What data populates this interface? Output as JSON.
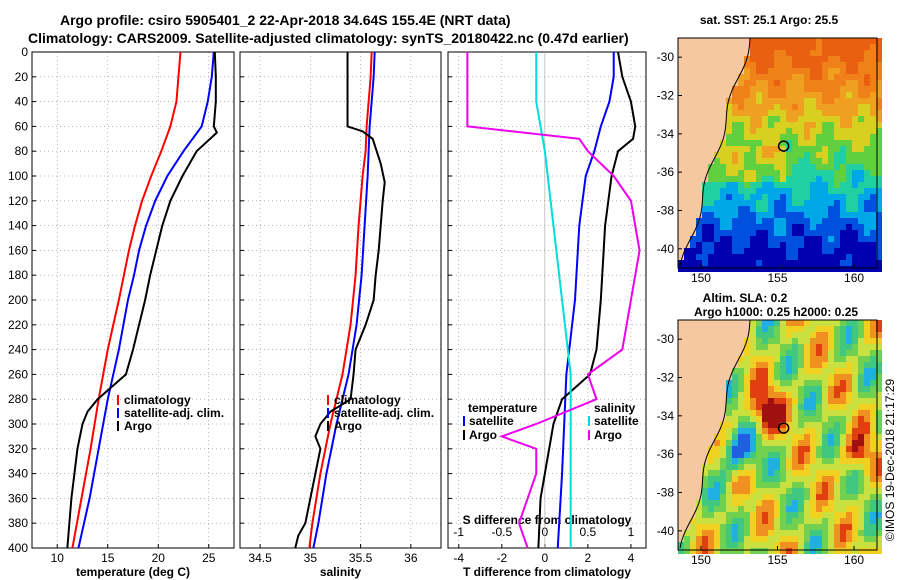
{
  "titles": {
    "line1": "Argo profile: csiro 5905401_2 22-Apr-2018 34.64S 155.4E (NRT data)",
    "line2": "Climatology: CARS2009. Satellite-adjusted climatology: synTS_20180422.nc (0.47d earlier)"
  },
  "colors": {
    "climatology": "#ff0000",
    "satellite": "#0000ff",
    "argo": "#000000",
    "sat_salinity": "#00dddd",
    "clim_salinity": "#ee00ee"
  },
  "chart_data": [
    {
      "type": "line",
      "title": "",
      "xlabel": "temperature (deg C)",
      "ylabel": "",
      "xlim": [
        7.5,
        27.5
      ],
      "ylim": [
        400,
        0
      ],
      "xticks": [
        "10",
        "15",
        "20",
        "25"
      ],
      "yticks": [
        "0",
        "20",
        "40",
        "60",
        "80",
        "100",
        "120",
        "140",
        "160",
        "180",
        "200",
        "220",
        "240",
        "260",
        "280",
        "300",
        "320",
        "340",
        "360",
        "380",
        "400"
      ],
      "grid": true,
      "legend": [
        "climatology",
        "satellite-adj. clim.",
        "Argo"
      ],
      "series": [
        {
          "name": "climatology",
          "depth": [
            0,
            20,
            40,
            60,
            80,
            100,
            120,
            140,
            160,
            180,
            200,
            240,
            280,
            320,
            360,
            400
          ],
          "values": [
            22.2,
            22.0,
            21.8,
            21.2,
            20.3,
            19.3,
            18.4,
            17.7,
            17.1,
            16.6,
            16.1,
            15.0,
            14.1,
            13.3,
            12.4,
            11.5
          ]
        },
        {
          "name": "satellite-adj. clim.",
          "depth": [
            0,
            20,
            40,
            60,
            80,
            100,
            120,
            140,
            160,
            180,
            200,
            240,
            280,
            320,
            360,
            400
          ],
          "values": [
            25.5,
            25.3,
            24.9,
            24.3,
            22.5,
            20.9,
            19.7,
            18.8,
            18.1,
            17.6,
            17.0,
            16.1,
            15.0,
            14.1,
            13.2,
            12.1
          ]
        },
        {
          "name": "Argo",
          "depth": [
            0,
            20,
            40,
            60,
            65,
            80,
            100,
            120,
            140,
            160,
            180,
            200,
            240,
            260,
            280,
            290,
            300,
            320,
            340,
            360,
            380,
            400
          ],
          "values": [
            25.6,
            25.7,
            25.7,
            25.5,
            25.8,
            23.8,
            22.4,
            21.2,
            20.4,
            19.8,
            19.2,
            18.7,
            17.5,
            16.8,
            14.0,
            13.0,
            12.5,
            12.0,
            11.7,
            11.4,
            11.2,
            11.0
          ]
        }
      ]
    },
    {
      "type": "line",
      "title": "",
      "xlabel": "salinity",
      "ylabel": "",
      "xlim": [
        34.3,
        36.3
      ],
      "ylim": [
        400,
        0
      ],
      "xticks": [
        "34.5",
        "35",
        "35.5",
        "36"
      ],
      "grid": true,
      "legend": [
        "climatology",
        "satellite-adj. clim.",
        "Argo"
      ],
      "series": [
        {
          "name": "climatology",
          "depth": [
            0,
            20,
            40,
            60,
            80,
            100,
            140,
            180,
            220,
            260,
            300,
            340,
            380,
            400
          ],
          "values": [
            35.61,
            35.6,
            35.58,
            35.56,
            35.55,
            35.52,
            35.48,
            35.45,
            35.4,
            35.32,
            35.2,
            35.1,
            35.02,
            34.99
          ]
        },
        {
          "name": "satellite-adj. clim.",
          "depth": [
            0,
            20,
            40,
            60,
            80,
            100,
            140,
            180,
            220,
            260,
            300,
            340,
            380,
            400
          ],
          "values": [
            35.64,
            35.63,
            35.61,
            35.59,
            35.58,
            35.57,
            35.54,
            35.51,
            35.46,
            35.38,
            35.26,
            35.16,
            35.08,
            35.03
          ]
        },
        {
          "name": "Argo",
          "depth": [
            0,
            20,
            40,
            60,
            64,
            70,
            80,
            90,
            105,
            120,
            140,
            160,
            180,
            200,
            220,
            240,
            260,
            280,
            290,
            300,
            310,
            320,
            340,
            360,
            380,
            390,
            400
          ],
          "values": [
            35.37,
            35.37,
            35.37,
            35.37,
            35.52,
            35.62,
            35.66,
            35.7,
            35.74,
            35.72,
            35.7,
            35.68,
            35.65,
            35.63,
            35.55,
            35.45,
            35.43,
            35.4,
            35.2,
            35.1,
            35.05,
            35.1,
            35.05,
            35.0,
            34.95,
            34.88,
            34.85
          ]
        }
      ]
    },
    {
      "type": "line",
      "title": "",
      "xlabel": "T difference from climatology",
      "xlabel_top": "S difference from climatology",
      "ylabel": "",
      "xlim": [
        -4.5,
        4.7
      ],
      "ylim": [
        400,
        0
      ],
      "xticks": [
        "-4",
        "-2",
        "0",
        "2",
        "4"
      ],
      "xticks_top": [
        "-1",
        "-0.5",
        "0",
        "0.5",
        "1"
      ],
      "grid": true,
      "legend": [
        "temperature",
        "satellite",
        "Argo",
        "salinity",
        "satellite",
        "Argo"
      ],
      "series": [
        {
          "name": "temperature satellite",
          "depth": [
            0,
            20,
            40,
            60,
            80,
            100,
            140,
            200,
            260,
            300,
            340,
            400
          ],
          "values": [
            3.2,
            3.2,
            3.0,
            2.6,
            2.3,
            1.9,
            1.6,
            1.4,
            1.0,
            0.9,
            0.8,
            0.6
          ]
        },
        {
          "name": "temperature Argo",
          "depth": [
            0,
            20,
            40,
            60,
            70,
            80,
            100,
            140,
            200,
            240,
            260,
            280,
            300,
            320,
            360,
            400
          ],
          "values": [
            3.4,
            3.6,
            4.0,
            4.2,
            4.1,
            3.4,
            3.1,
            2.8,
            2.6,
            2.4,
            2.1,
            0.8,
            0.4,
            0.2,
            -0.2,
            -0.3
          ]
        },
        {
          "name": "salinity satellite",
          "depth": [
            0,
            40,
            80,
            140,
            200,
            260,
            300,
            360,
            400
          ],
          "values": [
            -0.1,
            -0.1,
            0.0,
            0.1,
            0.2,
            0.3,
            0.3,
            0.3,
            0.3
          ]
        },
        {
          "name": "salinity Argo",
          "depth": [
            0,
            20,
            40,
            60,
            70,
            80,
            100,
            120,
            160,
            200,
            240,
            260,
            280,
            300,
            310,
            320,
            340,
            360,
            380,
            400
          ],
          "values": [
            -0.9,
            -0.9,
            -0.9,
            -0.9,
            0.4,
            0.5,
            0.8,
            1.0,
            1.1,
            1.0,
            0.9,
            0.5,
            0.6,
            -0.1,
            -0.5,
            -0.1,
            -0.1,
            -0.2,
            -0.3,
            -0.2
          ]
        }
      ]
    },
    {
      "type": "heatmap",
      "title": "sat. SST: 25.1 Argo: 25.5",
      "xticks": [
        "150",
        "155",
        "160"
      ],
      "yticks": [
        "-30",
        "-32",
        "-34",
        "-36",
        "-38",
        "-40"
      ],
      "marker": {
        "lon": 155.4,
        "lat": -34.64
      }
    },
    {
      "type": "heatmap",
      "title": "Altim. SLA: 0.2",
      "subtitle": "Argo h1000: 0.25 h2000: 0.25",
      "xticks": [
        "150",
        "155",
        "160"
      ],
      "yticks": [
        "-30",
        "-32",
        "-34",
        "-36",
        "-38",
        "-40"
      ],
      "marker": {
        "lon": 155.4,
        "lat": -34.64
      }
    }
  ],
  "credit": "©IMOS 19-Dec-2018 21:17:29"
}
